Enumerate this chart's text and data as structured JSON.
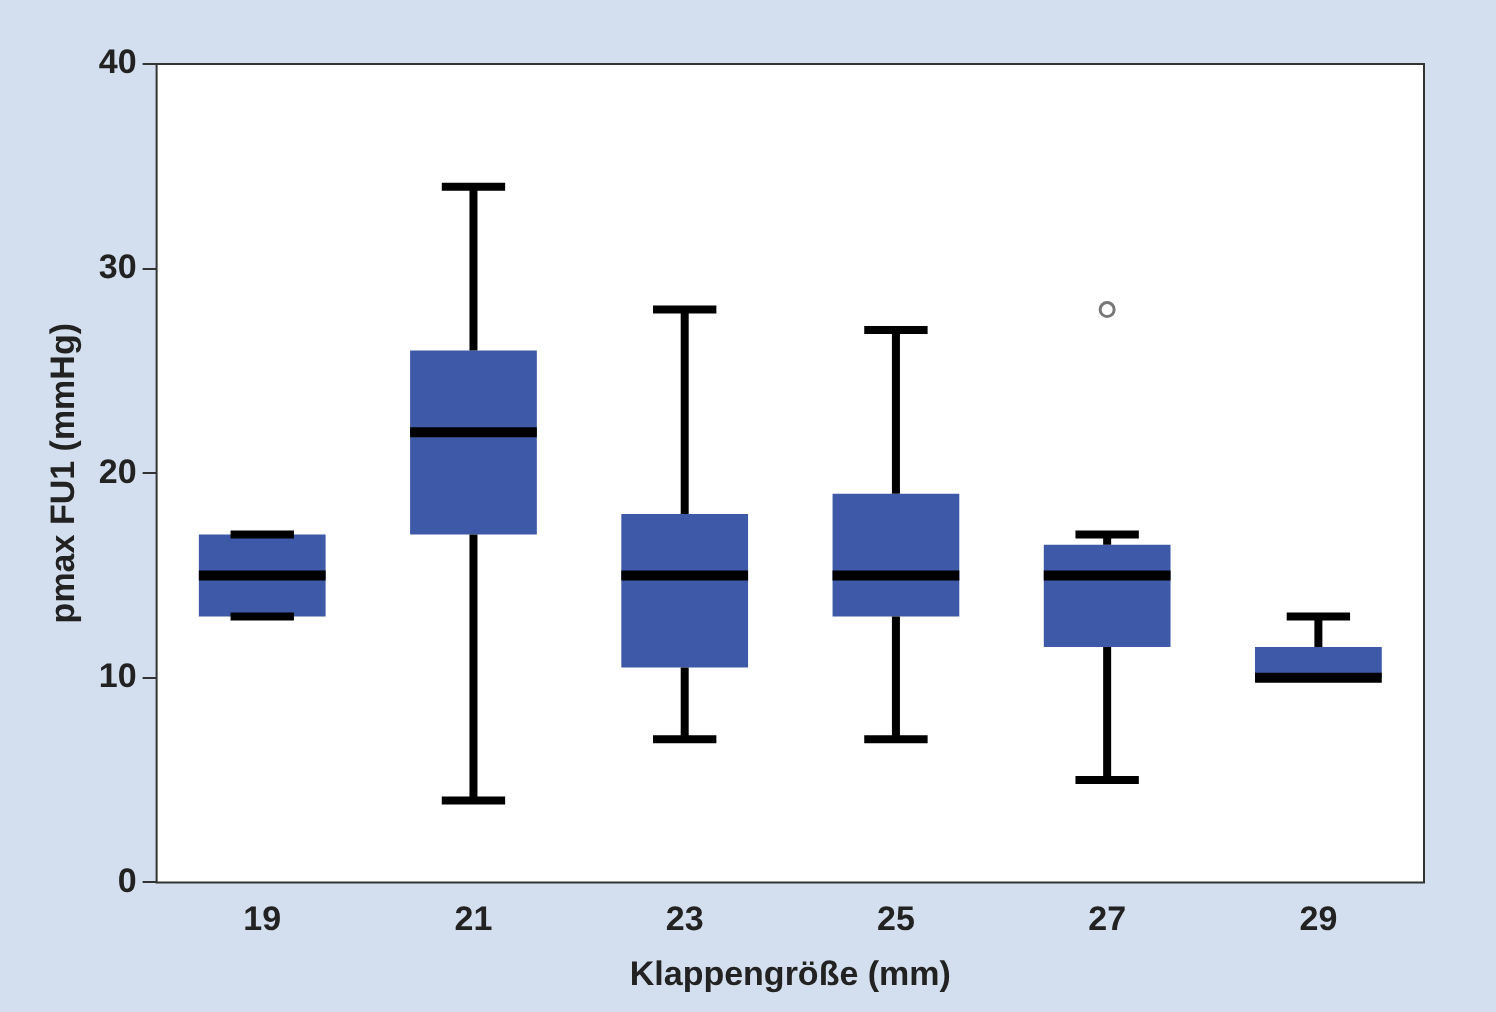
{
  "chart_data": {
    "type": "box",
    "xlabel": "Klappengröße (mm)",
    "ylabel": "pmax FU1 (mmHg)",
    "categories": [
      "19",
      "21",
      "23",
      "25",
      "27",
      "29"
    ],
    "color": "#3d59a8",
    "boxes": [
      {
        "low": 13,
        "q1": 13,
        "median": 15,
        "q3": 17,
        "high": 17
      },
      {
        "low": 4,
        "q1": 17,
        "median": 22,
        "q3": 26,
        "high": 34
      },
      {
        "low": 7,
        "q1": 10.5,
        "median": 15,
        "q3": 18,
        "high": 28
      },
      {
        "low": 7,
        "q1": 13,
        "median": 15,
        "q3": 19,
        "high": 27
      },
      {
        "low": 5,
        "q1": 11.5,
        "median": 15,
        "q3": 16.5,
        "high": 17,
        "outliers": [
          28
        ]
      },
      {
        "low": 10,
        "q1": 10,
        "median": 10,
        "q3": 11.5,
        "high": 13
      }
    ],
    "ylim": [
      0,
      40
    ],
    "yticks": [
      0,
      10,
      20,
      30,
      40
    ],
    "grid": false,
    "legend": false
  }
}
